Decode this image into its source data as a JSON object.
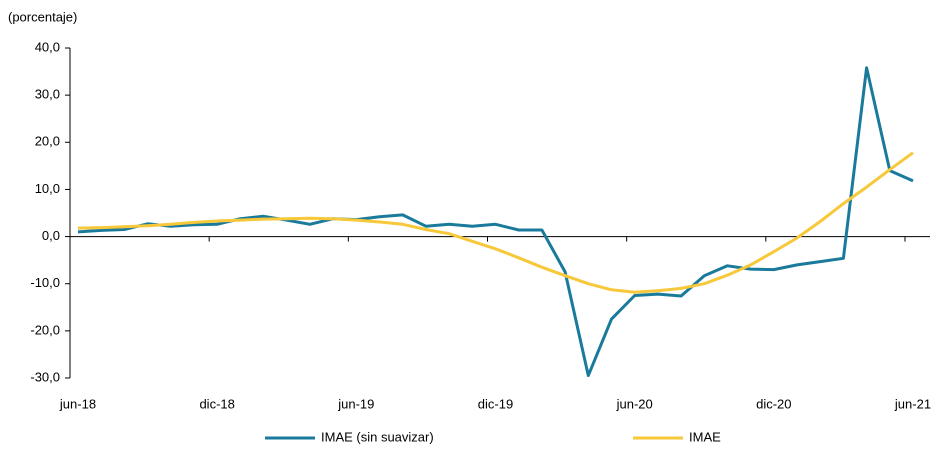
{
  "chart_data": {
    "type": "line",
    "y_label": "(porcentaje)",
    "categories": [
      "jun-18",
      null,
      null,
      null,
      null,
      null,
      "dic-18",
      null,
      null,
      null,
      null,
      null,
      "jun-19",
      null,
      null,
      null,
      null,
      null,
      "dic-19",
      null,
      null,
      null,
      null,
      null,
      "jun-20",
      null,
      null,
      null,
      null,
      null,
      "dic-20",
      null,
      null,
      null,
      null,
      null,
      "jun-21"
    ],
    "series": [
      {
        "name": "IMAE (sin suavizar)",
        "color": "#1a7a9b",
        "values": [
          1.0,
          1.3,
          1.5,
          2.7,
          2.2,
          2.5,
          2.6,
          3.8,
          4.3,
          3.5,
          2.6,
          3.8,
          3.6,
          4.2,
          4.6,
          2.2,
          2.6,
          2.2,
          2.6,
          1.4,
          1.4,
          -7.5,
          -29.5,
          -17.5,
          -12.5,
          -12.2,
          -12.6,
          -8.3,
          -6.2,
          -6.9,
          -7.0,
          -6.0,
          -5.3,
          -4.6,
          35.8,
          14.0,
          11.8
        ]
      },
      {
        "name": "IMAE",
        "color": "#f6c83a",
        "values": [
          1.8,
          1.9,
          2.1,
          2.3,
          2.6,
          3.0,
          3.3,
          3.5,
          3.7,
          3.8,
          3.9,
          3.8,
          3.5,
          3.1,
          2.6,
          1.5,
          0.6,
          -1.0,
          -2.6,
          -4.5,
          -6.5,
          -8.3,
          -10.0,
          -11.3,
          -11.8,
          -11.5,
          -11.0,
          -10.0,
          -8.2,
          -6.0,
          -3.2,
          -0.3,
          3.2,
          7.0,
          10.5,
          14.2,
          17.8
        ]
      }
    ],
    "ylim": [
      -30,
      40
    ],
    "yticks": [
      {
        "value": -30,
        "label": "-30,0"
      },
      {
        "value": -20,
        "label": "-20,0"
      },
      {
        "value": -10,
        "label": "-10,0"
      },
      {
        "value": 0,
        "label": "0,0"
      },
      {
        "value": 10,
        "label": "10,0"
      },
      {
        "value": 20,
        "label": "20,0"
      },
      {
        "value": 30,
        "label": "30,0"
      },
      {
        "value": 40,
        "label": "40,0"
      }
    ],
    "grid": false,
    "legend": "bottom"
  }
}
